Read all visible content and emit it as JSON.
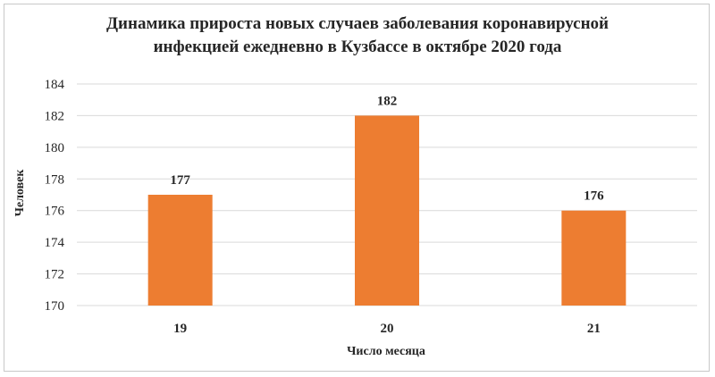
{
  "chart_data": {
    "type": "bar",
    "title_lines": [
      "Динамика прироста новых случаев заболевания коронавирусной",
      "инфекцией ежедневно в Кузбассе в октябре 2020 года"
    ],
    "categories": [
      "19",
      "20",
      "21"
    ],
    "values": [
      177,
      182,
      176
    ],
    "data_labels": [
      "177",
      "182",
      "176"
    ],
    "xlabel": "Число месяца",
    "ylabel": "Человек",
    "ylim": [
      170,
      184
    ],
    "yticks": [
      "170",
      "172",
      "174",
      "176",
      "178",
      "180",
      "182",
      "184"
    ],
    "grid": true,
    "legend": "none",
    "bar_color": "#ED7D31",
    "grid_color": "#d9d9d9"
  }
}
